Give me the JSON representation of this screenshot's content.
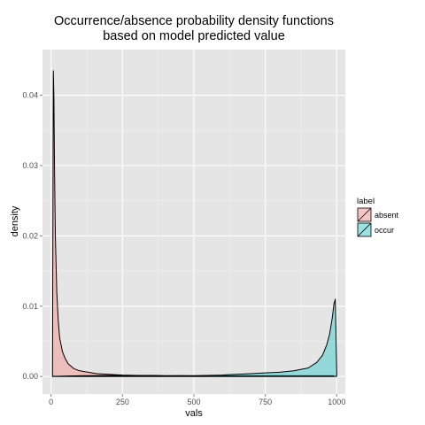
{
  "chart_data": {
    "type": "area",
    "title_line1": "Occurrence/absence probability density functions",
    "title_line2": "based on model predicted value",
    "xlabel": "vals",
    "ylabel": "density",
    "xlim": [
      -30,
      1030
    ],
    "ylim": [
      -0.0025,
      0.0465
    ],
    "x_ticks": [
      0,
      250,
      500,
      750,
      1000
    ],
    "x_tick_labels": [
      "0",
      "250",
      "500",
      "750",
      "1000"
    ],
    "y_ticks": [
      0.0,
      0.01,
      0.02,
      0.03,
      0.04
    ],
    "y_tick_labels": [
      "0.00",
      "0.01",
      "0.02",
      "0.03",
      "0.04"
    ],
    "grid": true,
    "legend_title": "label",
    "legend_position": "right",
    "series": [
      {
        "name": "absent",
        "color": "#f8766d",
        "x": [
          5,
          8,
          10,
          12,
          15,
          20,
          25,
          30,
          40,
          50,
          60,
          80,
          100,
          130,
          160,
          200,
          250,
          300,
          400,
          500,
          600,
          700,
          800,
          900,
          950,
          990
        ],
        "y": [
          0.0,
          0.0435,
          0.0395,
          0.03,
          0.02,
          0.012,
          0.008,
          0.0055,
          0.0035,
          0.0025,
          0.0018,
          0.0011,
          0.0008,
          0.0006,
          0.0004,
          0.0003,
          0.0002,
          0.00015,
          0.0001,
          0.0001,
          0.0001,
          0.0001,
          0.0001,
          0.0001,
          0.0001,
          0.0001
        ]
      },
      {
        "name": "occur",
        "color": "#00bfc4",
        "x": [
          5,
          50,
          100,
          150,
          200,
          250,
          300,
          350,
          400,
          450,
          500,
          550,
          600,
          650,
          700,
          750,
          800,
          850,
          900,
          930,
          950,
          965,
          975,
          985,
          990,
          995,
          1000
        ],
        "y": [
          0.0,
          5e-05,
          0.0001,
          0.00012,
          0.00015,
          0.00015,
          0.0001,
          0.00015,
          0.0001,
          0.00012,
          0.0001,
          0.00015,
          0.0002,
          0.0003,
          0.0004,
          0.0005,
          0.0006,
          0.0008,
          0.0012,
          0.002,
          0.003,
          0.0045,
          0.006,
          0.0085,
          0.0103,
          0.011,
          0.0005
        ]
      }
    ]
  }
}
